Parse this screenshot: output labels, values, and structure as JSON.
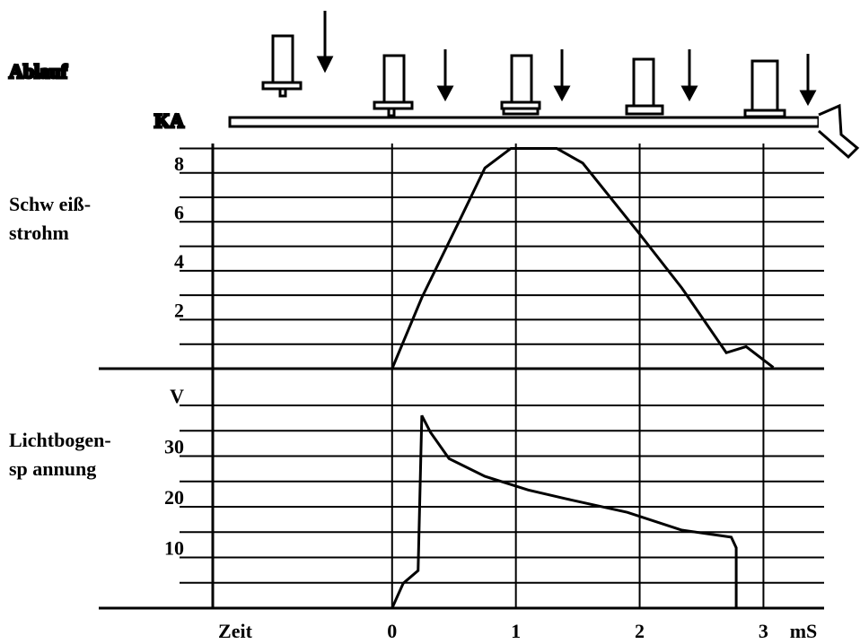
{
  "labels": {
    "process": "Ablauf",
    "stud_unit": "KA"
  },
  "chart_data": [
    {
      "type": "line",
      "title_lines": [
        "Schw eiß-",
        "strohm"
      ],
      "xlim": [
        -2.37,
        3.49
      ],
      "xticks": [
        0,
        1,
        2,
        3
      ],
      "xlabel": "Zeit",
      "xunit": "mS",
      "ylim": [
        0,
        9.2
      ],
      "yticks": [
        2,
        4,
        6,
        8
      ],
      "yminor": [
        1,
        3,
        5,
        7,
        9
      ],
      "grid": true,
      "series": [
        {
          "color": "#000000",
          "x": [
            0,
            0.24,
            0.53,
            0.75,
            0.96,
            1.33,
            1.54,
            2.0,
            2.34,
            2.7,
            2.86,
            3.08
          ],
          "values": [
            0,
            2.9,
            5.9,
            8.2,
            9.0,
            9.0,
            8.4,
            5.5,
            3.3,
            0.65,
            0.9,
            0.05
          ]
        }
      ]
    },
    {
      "type": "line",
      "title_lines": [
        "Lichtbogen-",
        "sp annung"
      ],
      "xlim": [
        -2.37,
        3.49
      ],
      "xticks": [
        0,
        1,
        2,
        3
      ],
      "ylim": [
        0,
        40
      ],
      "yticks": [
        10,
        20,
        30,
        {
          "value": 40,
          "label": "V"
        }
      ],
      "yminor": [
        5,
        15,
        25,
        35
      ],
      "grid": true,
      "series": [
        {
          "color": "#000000",
          "x": [
            -0.95,
            0,
            0.09,
            0.21,
            0.24,
            0.31,
            0.46,
            0.75,
            1.1,
            1.4,
            1.9,
            2.34,
            2.74,
            2.78,
            2.78,
            3.36
          ],
          "values": [
            0,
            0,
            4.9,
            7.4,
            38,
            34.7,
            29.5,
            26,
            23.3,
            21.6,
            18.9,
            15.4,
            14,
            11.9,
            0,
            0
          ]
        }
      ]
    }
  ]
}
